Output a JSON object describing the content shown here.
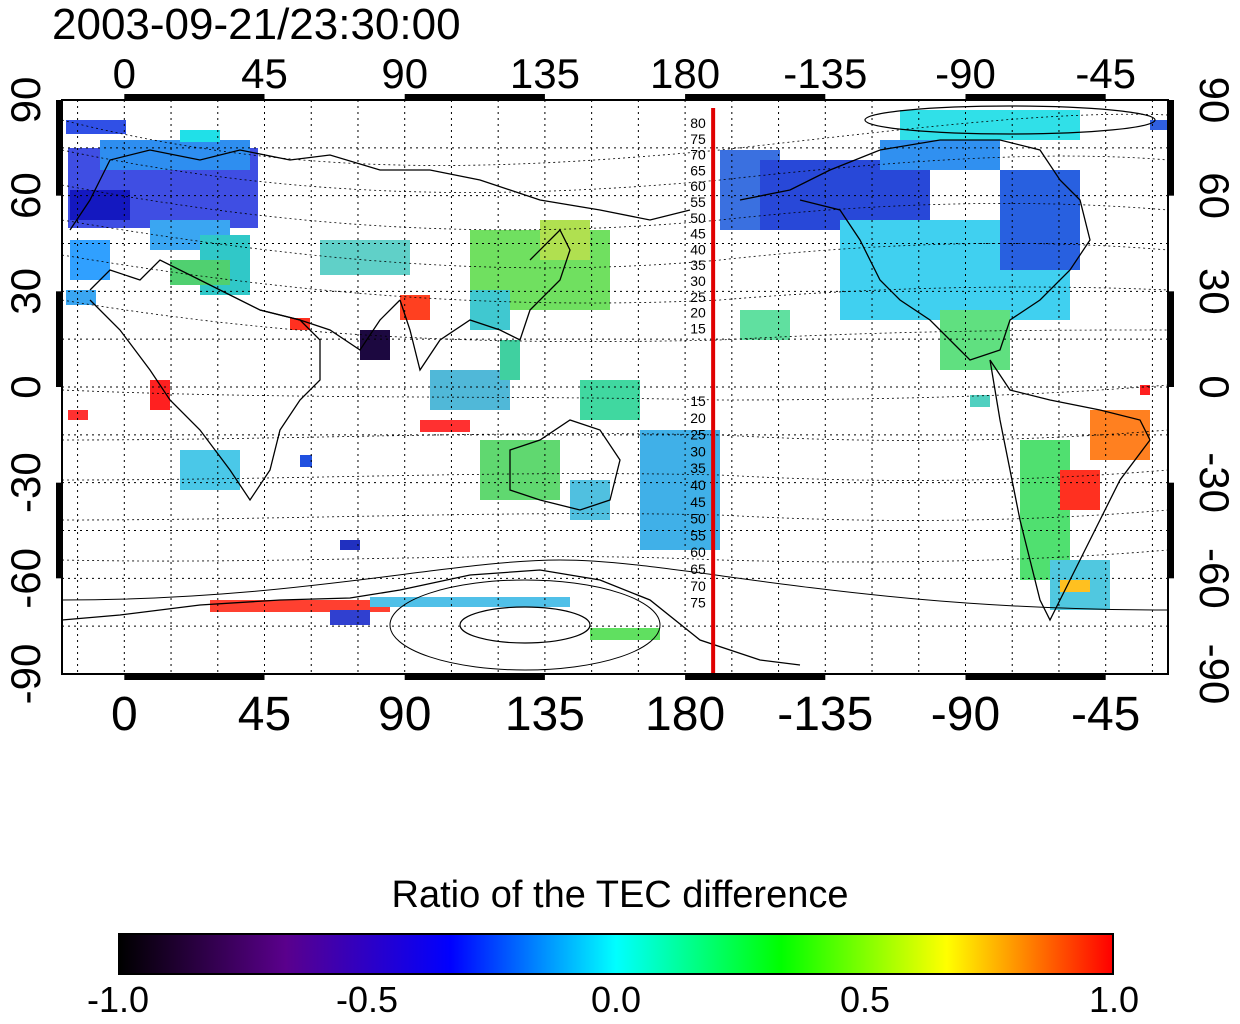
{
  "title": "2003-09-21/23:30:00",
  "map": {
    "lon_ticks_top": [
      "0",
      "45",
      "90",
      "135",
      "180",
      "-135",
      "-90",
      "-45"
    ],
    "lon_ticks_bottom": [
      "0",
      "45",
      "90",
      "135",
      "180",
      "-135",
      "-90",
      "-45"
    ],
    "lon_tick_values": [
      0,
      45,
      90,
      135,
      180,
      225,
      270,
      315
    ],
    "lat_ticks_left": [
      "90",
      "60",
      "30",
      "0",
      "-30",
      "-60",
      "-90"
    ],
    "lat_ticks_right": [
      "90",
      "60",
      "30",
      "0",
      "-30",
      "-60",
      "-90"
    ],
    "lat_tick_values": [
      90,
      60,
      30,
      0,
      -30,
      -60,
      -90
    ],
    "lon_range": [
      -20,
      335
    ],
    "lat_range": [
      -90,
      90
    ],
    "red_meridian_lon": 189,
    "contour_labels_north": [
      "80",
      "75",
      "70",
      "65",
      "60",
      "55",
      "50",
      "45",
      "40",
      "35",
      "30",
      "25",
      "20",
      "15"
    ],
    "contour_labels_south": [
      "15",
      "20",
      "25",
      "30",
      "35",
      "40",
      "45",
      "50",
      "55",
      "60",
      "65",
      "70",
      "75"
    ],
    "red_line_color": "#e00000"
  },
  "colorbar": {
    "title": "Ratio of the TEC difference",
    "tick_labels": [
      "-1.0",
      "-0.5",
      "0.0",
      "0.5",
      "1.0"
    ],
    "tick_values": [
      -1.0,
      -0.5,
      0.0,
      0.5,
      1.0
    ],
    "colors": [
      "#000000",
      "#5a008c",
      "#0000ff",
      "#00ffff",
      "#00ff00",
      "#ffff00",
      "#ff0000"
    ]
  }
}
